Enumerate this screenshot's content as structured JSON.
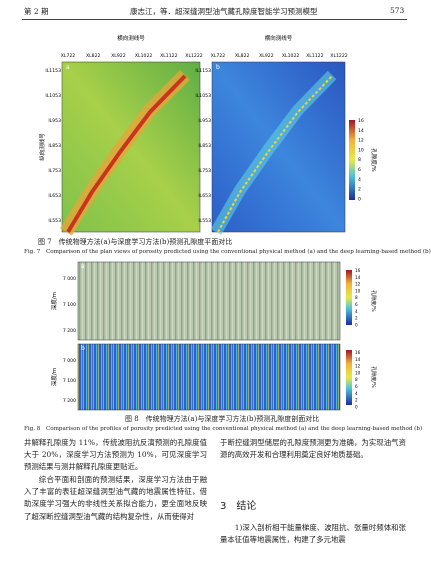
{
  "header": {
    "issue": "第 2 期",
    "running_title": "康志江，等．超深缝洞型油气藏孔隙度智能学习预测模型",
    "page": "573"
  },
  "figure7": {
    "top_axis_title": "横向测线号",
    "left_axis_title": "纵向测线号",
    "colorbar_title": "孔隙度/%",
    "panel_labels": [
      "a",
      "b"
    ],
    "xticks": [
      "XL722",
      "XL822",
      "XL922",
      "XL1022",
      "XL1122",
      "XL1222"
    ],
    "yticks": [
      "IL1153",
      "IL1053",
      "IL953",
      "IL853",
      "IL753",
      "IL653",
      "IL553"
    ],
    "colorbar_ticks": [
      "16",
      "14",
      "12",
      "10",
      "8",
      "6",
      "4",
      "2",
      "0"
    ],
    "caption_zh": "图 7　传统物理方法(a)与深度学习方法(b)预测孔隙度平面对比",
    "caption_en": "Fig. 7　Comparison of the plan views of porosity predicted using the conventional physical method (a) and the deep learning-based method (b)"
  },
  "figure8": {
    "depth_title": "深度/m",
    "colorbar_title": "孔隙度/%",
    "panel_labels": [
      "a",
      "b"
    ],
    "depth_ticks": [
      "7 000",
      "7 100",
      "7 200"
    ],
    "colorbar_ticks": [
      "16",
      "14",
      "12",
      "10",
      "8",
      "6",
      "4",
      "2",
      "0"
    ],
    "caption_zh": "图 8　传统物理方法(a)与深度学习方法(b)预测孔隙度剖面对比",
    "caption_en": "Fig. 8　Comparison of the profiles of porosity predicted using the conventional physical method (a) and the deep learning-based method (b)"
  },
  "body": {
    "left": [
      "井解释孔隙度为 11%，传统波阻抗反演预测的孔隙度值大于 20%，深度学习方法预测为 10%，可见深度学习预测结果与测井解释孔隙度更贴近。",
      "综合平面和剖面的预测结果，深度学习方法由于融入了丰富的表征超深缝洞型油气藏的地震属性特征，借助深度学习强大的非线性关系拟合能力，更全面地反映了超深断控缝洞型油气藏的结构复杂性，从而使得对"
    ],
    "right": [
      "于断控缝洞型储层的孔隙度预测更为准确，为实现油气资源的高效开发和合理利用奠定良好地质基础。"
    ],
    "section_heading": "3　结论",
    "right_after": [
      "1)深入剖析相干能量梯度、波阻抗、张量时频体和张量本征值等地震属性，构建了多元地震"
    ]
  }
}
